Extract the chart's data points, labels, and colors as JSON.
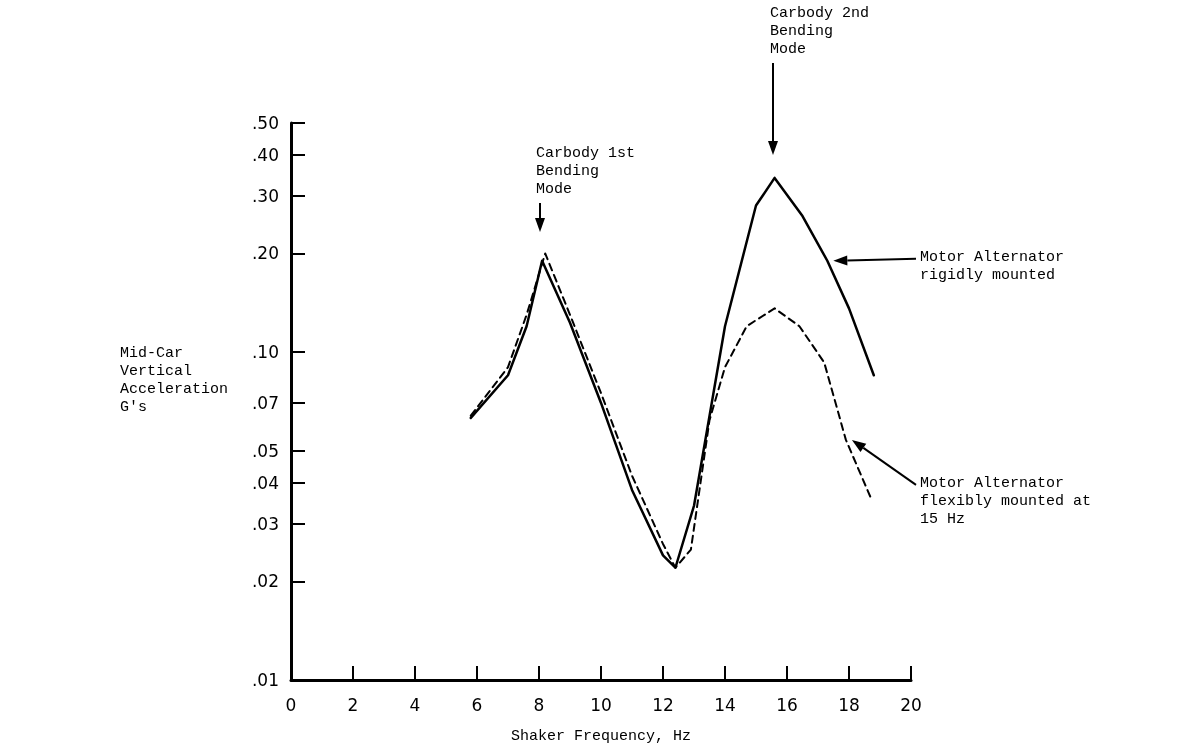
{
  "chart_data": {
    "type": "line",
    "xlabel": "Shaker Frequency, Hz",
    "ylabel": "Mid-Car Vertical Acceleration G's",
    "annotations": [
      "Carbody 1st Bending Mode",
      "Carbody 2nd Bending Mode"
    ],
    "series": [
      {
        "name": "Motor Alternator rigidly mounted",
        "color": "#000000",
        "line_style": "solid",
        "x": [
          5.8,
          7,
          7.6,
          8.1,
          9,
          10,
          11,
          12,
          12.4,
          13,
          14,
          15,
          15.6,
          16.5,
          17.3,
          18,
          18.8
        ],
        "values": [
          0.063,
          0.085,
          0.12,
          0.19,
          0.123,
          0.07,
          0.038,
          0.024,
          0.022,
          0.034,
          0.12,
          0.28,
          0.34,
          0.26,
          0.19,
          0.136,
          0.085
        ]
      },
      {
        "name": "Motor Alternator flexibly mounted at 15 Hz",
        "color": "#000000",
        "line_style": "dashed",
        "x": [
          5.8,
          7,
          7.6,
          8.2,
          9,
          10,
          11,
          12,
          12.4,
          12.9,
          13.5,
          14,
          14.7,
          15.6,
          16.4,
          17.2,
          17.9,
          18.7
        ],
        "values": [
          0.064,
          0.09,
          0.13,
          0.2,
          0.13,
          0.075,
          0.042,
          0.026,
          0.022,
          0.025,
          0.062,
          0.09,
          0.12,
          0.136,
          0.12,
          0.093,
          0.054,
          0.036
        ]
      }
    ],
    "marker": "none",
    "log": "y",
    "grid": false,
    "legend": "right",
    "xlim": [
      0,
      20
    ],
    "xticks": [
      0,
      2,
      4,
      6,
      8,
      10,
      12,
      14,
      16,
      18,
      20
    ],
    "ylim": [
      0.01,
      0.5
    ],
    "yticks": [
      {
        "value": 0.01,
        "label": ".01"
      },
      {
        "value": 0.02,
        "label": ".02"
      },
      {
        "value": 0.03,
        "label": ".03"
      },
      {
        "value": 0.04,
        "label": ".04"
      },
      {
        "value": 0.05,
        "label": ".05"
      },
      {
        "value": 0.07,
        "label": ".07"
      },
      {
        "value": 0.1,
        "label": ".10"
      },
      {
        "value": 0.2,
        "label": ".20"
      },
      {
        "value": 0.3,
        "label": ".30"
      },
      {
        "value": 0.4,
        "label": ".40"
      },
      {
        "value": 0.5,
        "label": ".50"
      }
    ]
  }
}
